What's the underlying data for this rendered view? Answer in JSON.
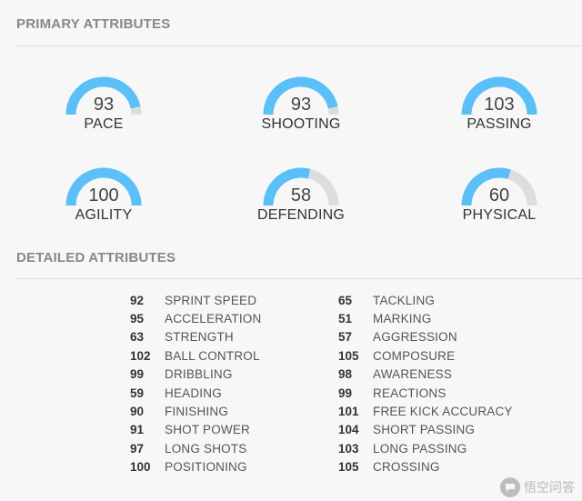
{
  "primary": {
    "title": "PRIMARY ATTRIBUTES",
    "gauges": [
      {
        "label": "PACE",
        "value": "93",
        "fill": 0.93
      },
      {
        "label": "SHOOTING",
        "value": "93",
        "fill": 0.93
      },
      {
        "label": "PASSING",
        "value": "103",
        "fill": 1.0
      },
      {
        "label": "AGILITY",
        "value": "100",
        "fill": 1.0
      },
      {
        "label": "DEFENDING",
        "value": "58",
        "fill": 0.58
      },
      {
        "label": "PHYSICAL",
        "value": "60",
        "fill": 0.6
      }
    ]
  },
  "detailed": {
    "title": "DETAILED ATTRIBUTES",
    "left": [
      {
        "value": "92",
        "name": "SPRINT SPEED"
      },
      {
        "value": "95",
        "name": "ACCELERATION"
      },
      {
        "value": "63",
        "name": "STRENGTH"
      },
      {
        "value": "102",
        "name": "BALL CONTROL"
      },
      {
        "value": "99",
        "name": "DRIBBLING"
      },
      {
        "value": "59",
        "name": "HEADING"
      },
      {
        "value": "90",
        "name": "FINISHING"
      },
      {
        "value": "91",
        "name": "SHOT POWER"
      },
      {
        "value": "97",
        "name": "LONG SHOTS"
      },
      {
        "value": "100",
        "name": "POSITIONING"
      }
    ],
    "right": [
      {
        "value": "65",
        "name": "TACKLING"
      },
      {
        "value": "51",
        "name": "MARKING"
      },
      {
        "value": "57",
        "name": "AGGRESSION"
      },
      {
        "value": "105",
        "name": "COMPOSURE"
      },
      {
        "value": "98",
        "name": "AWARENESS"
      },
      {
        "value": "99",
        "name": "REACTIONS"
      },
      {
        "value": "101",
        "name": "FREE KICK ACCURACY"
      },
      {
        "value": "104",
        "name": "SHORT PASSING"
      },
      {
        "value": "103",
        "name": "LONG PASSING"
      },
      {
        "value": "105",
        "name": "CROSSING"
      }
    ]
  },
  "watermark": {
    "text": "悟空问答",
    "icon": "chat-bubble-icon"
  },
  "colors": {
    "arc_fill": "#5bc0f8",
    "arc_track": "#dddddd"
  }
}
